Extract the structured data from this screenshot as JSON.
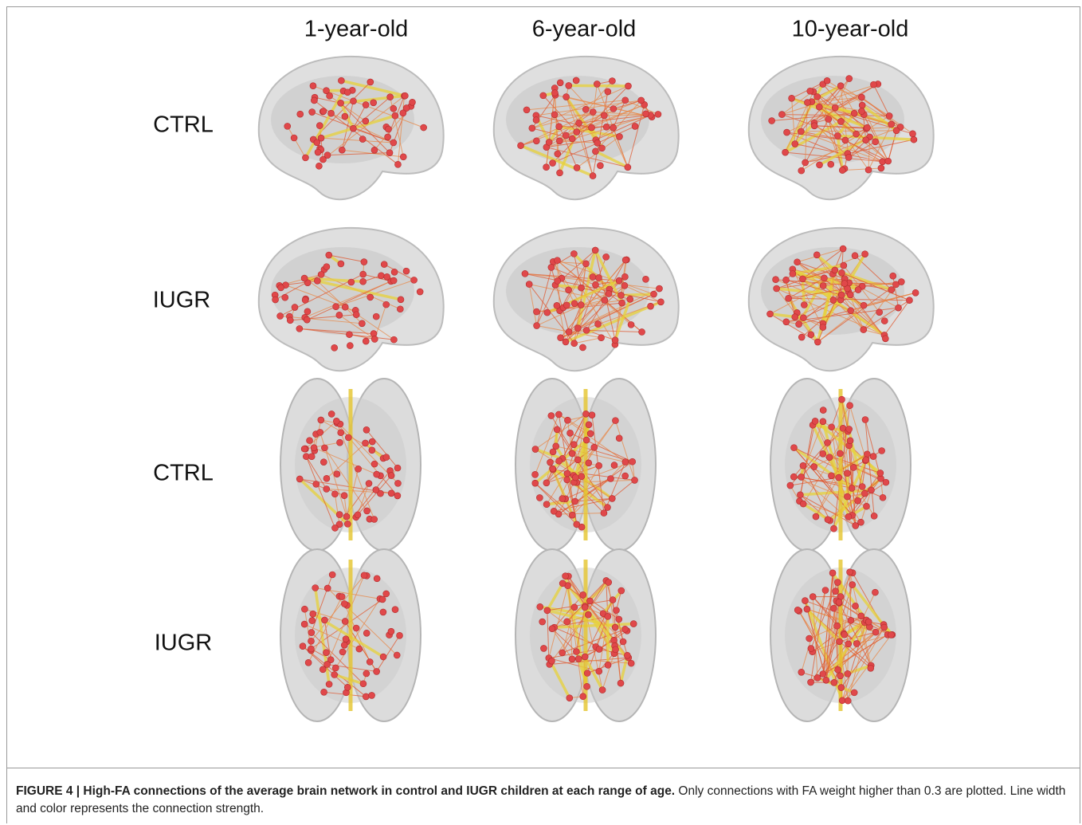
{
  "figure": {
    "column_labels": [
      "1-year-old",
      "6-year-old",
      "10-year-old"
    ],
    "row_labels": [
      "CTRL",
      "IUGR",
      "CTRL",
      "IUGR"
    ],
    "caption": {
      "label": "FIGURE 4 | High-FA connections of the average brain network in control and IUGR children at each range of age.",
      "text": " Only connections with FA weight higher than 0.3 are plotted. Line width and color represents the connection strength."
    }
  }
}
